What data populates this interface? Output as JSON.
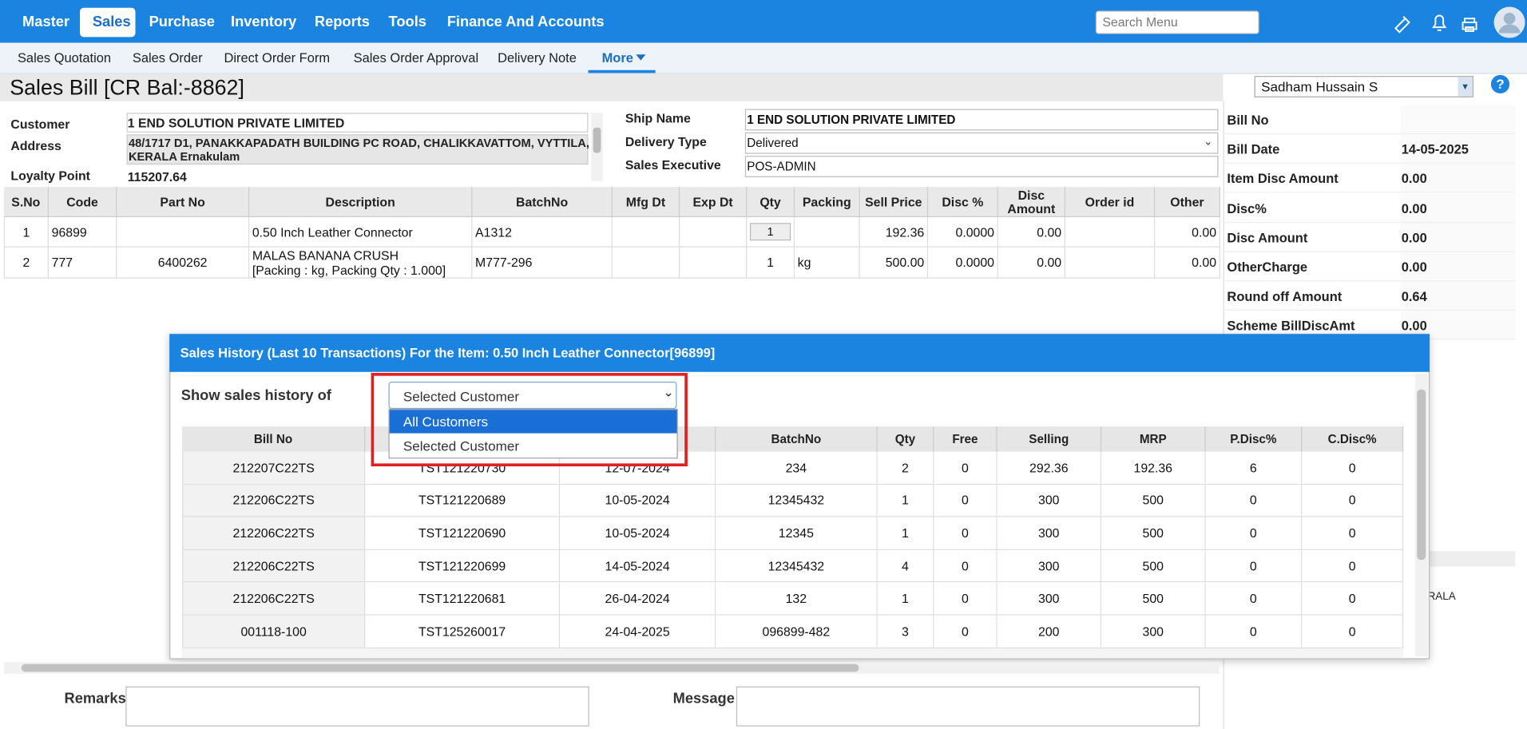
{
  "nav": {
    "items": [
      "Master",
      "Sales",
      "Purchase",
      "Inventory",
      "Reports",
      "Tools",
      "Finance And Accounts"
    ],
    "active": "Sales",
    "search_placeholder": "Search Menu"
  },
  "sub_nav": {
    "items": [
      "Sales Quotation",
      "Sales Order",
      "Direct Order Form",
      "Sales Order Approval",
      "Delivery Note",
      "More"
    ]
  },
  "page_title": "Sales Bill [CR Bal:-8862]",
  "user_select": "Sadham Hussain S",
  "form": {
    "left": [
      {
        "label": "Customer",
        "value": "1 END SOLUTION PRIVATE LIMITED"
      },
      {
        "label": "Address",
        "value": [
          "48/1717 D1, PANAKKAPADATH BUILDING PC ROAD, CHALIKKAVATTOM, VYTTILA,",
          "KERALA Ernakulam"
        ]
      },
      {
        "label": "Loyalty Point",
        "value": "115207.64"
      }
    ],
    "right": [
      {
        "label": "Ship Name",
        "value": "1 END SOLUTION PRIVATE LIMITED"
      },
      {
        "label": "Delivery Type",
        "value": "Delivered"
      },
      {
        "label": "Sales Executive",
        "value": "POS-ADMIN"
      }
    ]
  },
  "items": {
    "headers": [
      "S.No",
      "Code",
      "Part No",
      "Description",
      "BatchNo",
      "Mfg Dt",
      "Exp Dt",
      "Qty",
      "Packing",
      "Sell Price",
      "Disc %",
      [
        "Disc",
        "Amount"
      ],
      "Order id",
      "Other"
    ],
    "rows": [
      [
        "1",
        "96899",
        null,
        "0.50 Inch Leather Connector",
        "A1312",
        null,
        null,
        "1",
        null,
        "192.36",
        "0.0000",
        "0.00",
        null,
        "0.00"
      ],
      [
        "2",
        "777",
        "6400262",
        [
          "MALAS BANANA CRUSH",
          "[Packing : kg, Packing Qty : 1.000]"
        ],
        "M777-296",
        null,
        null,
        "1",
        "kg",
        "500.00",
        "0.0000",
        "0.00",
        null,
        "0.00"
      ]
    ]
  },
  "summary": [
    {
      "label": "Bill No",
      "value": null
    },
    {
      "label": "Bill Date",
      "value": "14-05-2025"
    },
    {
      "label": "Item Disc Amount",
      "value": "0.00"
    },
    {
      "label": "Disc%",
      "value": "0.00"
    },
    {
      "label": "Disc Amount",
      "value": "0.00"
    },
    {
      "label": "OtherCharge",
      "value": "0.00"
    },
    {
      "label": "Round off Amount",
      "value": "0.64"
    },
    {
      "label": "Scheme BillDiscAmt",
      "value": "0.00"
    }
  ],
  "background_fragment": "RALA",
  "dialog": {
    "title": "Sales History (Last 10 Transactions) For the Item: 0.50 Inch Leather Connector[96899]",
    "filter_label": "Show sales history of",
    "filter_value": "Selected Customer",
    "options": [
      "All Customers",
      "Selected Customer"
    ],
    "headers": [
      "Bill No",
      null,
      null,
      "BatchNo",
      "Qty",
      "Free",
      "Selling",
      "MRP",
      "P.Disc%",
      "C.Disc%"
    ],
    "rows": [
      [
        "212207C22TS",
        "TST121220730",
        "12-07-2024",
        "234",
        "2",
        "0",
        "292.36",
        "192.36",
        "6",
        "0"
      ],
      [
        "212206C22TS",
        "TST121220689",
        "10-05-2024",
        "12345432",
        "1",
        "0",
        "300",
        "500",
        "0",
        "0"
      ],
      [
        "212206C22TS",
        "TST121220690",
        "10-05-2024",
        "12345",
        "1",
        "0",
        "300",
        "500",
        "0",
        "0"
      ],
      [
        "212206C22TS",
        "TST121220699",
        "14-05-2024",
        "12345432",
        "4",
        "0",
        "300",
        "500",
        "0",
        "0"
      ],
      [
        "212206C22TS",
        "TST121220681",
        "26-04-2024",
        "132",
        "1",
        "0",
        "300",
        "500",
        "0",
        "0"
      ],
      [
        "001118-100",
        "TST125260017",
        "24-04-2025",
        "096899-482",
        "3",
        "0",
        "200",
        "300",
        "0",
        "0"
      ]
    ]
  },
  "footer": {
    "remarks_label": "Remarks",
    "message_label": "Message"
  }
}
